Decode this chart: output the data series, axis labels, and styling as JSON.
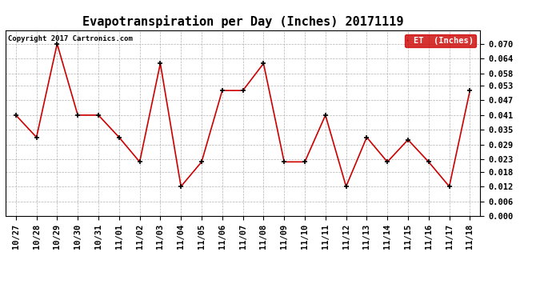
{
  "title": "Evapotranspiration per Day (Inches) 20171119",
  "copyright_text": "Copyright 2017 Cartronics.com",
  "legend_label": "ET  (Inches)",
  "x_labels": [
    "10/27",
    "10/28",
    "10/29",
    "10/30",
    "10/31",
    "11/01",
    "11/02",
    "11/03",
    "11/04",
    "11/05",
    "11/06",
    "11/07",
    "11/08",
    "11/09",
    "11/10",
    "11/11",
    "11/12",
    "11/13",
    "11/14",
    "11/15",
    "11/16",
    "11/17",
    "11/18"
  ],
  "y_values": [
    0.041,
    0.032,
    0.07,
    0.041,
    0.041,
    0.032,
    0.022,
    0.062,
    0.012,
    0.022,
    0.051,
    0.051,
    0.062,
    0.022,
    0.022,
    0.041,
    0.012,
    0.032,
    0.022,
    0.031,
    0.022,
    0.012,
    0.051
  ],
  "ylim": [
    0.0,
    0.0756
  ],
  "yticks": [
    0.0,
    0.006,
    0.012,
    0.018,
    0.023,
    0.029,
    0.035,
    0.041,
    0.047,
    0.053,
    0.058,
    0.064,
    0.07
  ],
  "line_color": "#cc0000",
  "marker": "+",
  "marker_color": "#000000",
  "background_color": "#ffffff",
  "grid_color": "#aaaaaa",
  "legend_bg_color": "#cc0000",
  "legend_text_color": "#ffffff",
  "title_fontsize": 11,
  "tick_fontsize": 7.5,
  "copyright_fontsize": 6.5
}
